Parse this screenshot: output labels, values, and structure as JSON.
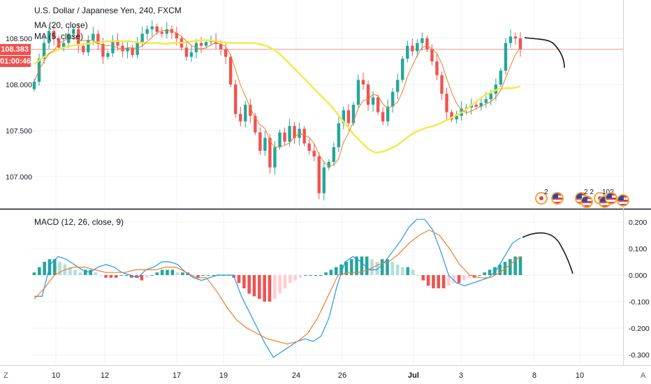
{
  "header": {
    "symbol_title": "U.S. Dollar / Japanese Yen, 240, FXCM",
    "ma20_label": "MA (20, close)",
    "ma5_label": "MA (5, close)",
    "macd_label": "MACD (12, 26, close, 9)"
  },
  "price_tags": {
    "last_price": "108.383",
    "countdown": "01:00:46"
  },
  "price_axis": [
    "108.500",
    "108.000",
    "107.500",
    "107.000"
  ],
  "macd_axis": [
    "0.200",
    "0.100",
    "0.000",
    "-0.100",
    "-0.200",
    "-0.300"
  ],
  "time_axis": [
    "10",
    "12",
    "17",
    "19",
    "24",
    "26",
    "Jul",
    "3",
    "8",
    "10"
  ],
  "events": [
    {
      "count": "2"
    },
    {
      "count": "2 2"
    },
    {
      "count": "10?"
    }
  ],
  "bottom": {
    "zoom_glyph": "Z",
    "scroll_glyph": "A"
  },
  "colors": {
    "up": "#26a69a",
    "down": "#ef5350",
    "ma20": "#f5e84b",
    "ma5": "#f07c2a",
    "macd": "#2196f3",
    "signal": "#f07c2a",
    "price_line": "#f19999",
    "hist_up_strong": "#26a69a",
    "hist_up_weak": "#b2dfdb",
    "hist_down_strong": "#ef5350",
    "hist_down_weak": "#ffcdd2"
  },
  "chart_data": {
    "type": "candlestick",
    "instrument": "U.S. Dollar / Japanese Yen",
    "timeframe": "240",
    "source": "FXCM",
    "price_ylim": [
      106.8,
      108.75
    ],
    "macd_ylim": [
      -0.33,
      0.23
    ],
    "close": [
      108.03,
      108.28,
      108.45,
      108.58,
      108.5,
      108.4,
      108.45,
      108.55,
      108.6,
      108.42,
      108.35,
      108.48,
      108.55,
      108.44,
      108.3,
      108.34,
      108.48,
      108.42,
      108.36,
      108.4,
      108.32,
      108.46,
      108.55,
      108.6,
      108.63,
      108.57,
      108.55,
      108.6,
      108.56,
      108.5,
      108.4,
      108.3,
      108.35,
      108.45,
      108.42,
      108.46,
      108.48,
      108.44,
      108.38,
      108.3,
      108.0,
      107.68,
      107.6,
      107.78,
      107.66,
      107.48,
      107.28,
      107.42,
      107.1,
      107.32,
      107.48,
      107.38,
      107.55,
      107.42,
      107.52,
      107.36,
      107.28,
      107.22,
      106.82,
      107.1,
      107.16,
      107.32,
      107.58,
      107.72,
      107.58,
      107.78,
      108.05,
      108.0,
      107.78,
      107.86,
      107.7,
      107.6,
      107.76,
      107.92,
      108.05,
      108.28,
      108.42,
      108.36,
      108.45,
      108.5,
      108.38,
      108.25,
      108.1,
      107.9,
      107.7,
      107.62,
      107.66,
      107.74,
      107.75,
      107.78,
      107.76,
      107.8,
      107.84,
      107.9,
      108.0,
      108.15,
      108.45,
      108.52,
      108.5,
      108.38
    ],
    "ma20": [
      108.22,
      108.28,
      108.33,
      108.37,
      108.4,
      108.42,
      108.43,
      108.44,
      108.45,
      108.46,
      108.47,
      108.47,
      108.47,
      108.47,
      108.46,
      108.45,
      108.45,
      108.45,
      108.44,
      108.45,
      108.45,
      108.46,
      108.47,
      108.48,
      108.48,
      108.47,
      108.46,
      108.45,
      108.45,
      108.45,
      108.45,
      108.44,
      108.42,
      108.38,
      108.32,
      108.24,
      108.16,
      108.08,
      108.0,
      107.92,
      107.84,
      107.76,
      107.66,
      107.56,
      107.46,
      107.38,
      107.3,
      107.26,
      107.27,
      107.3,
      107.34,
      107.4,
      107.46,
      107.5,
      107.53,
      107.55,
      107.58,
      107.62,
      107.66,
      107.7,
      107.76,
      107.82,
      107.88,
      107.92,
      107.95,
      107.96,
      107.96,
      107.98
    ],
    "macd": [
      -0.08,
      -0.08,
      0.04,
      0.07,
      0.06,
      0.04,
      0.02,
      0.01,
      0.03,
      0.04,
      0.03,
      0.01,
      0.0,
      -0.01,
      0.02,
      0.03,
      0.05,
      0.05,
      0.04,
      0.01,
      -0.01,
      -0.02,
      -0.01,
      0.0,
      0.0,
      0.0,
      -0.08,
      -0.14,
      -0.2,
      -0.26,
      -0.31,
      -0.29,
      -0.27,
      -0.25,
      -0.24,
      -0.25,
      -0.23,
      -0.16,
      -0.04,
      0.05,
      0.07,
      0.05,
      0.02,
      0.02,
      0.05,
      0.09,
      0.13,
      0.18,
      0.21,
      0.21,
      0.17,
      0.09,
      0.0,
      -0.03,
      -0.04,
      -0.03,
      -0.02,
      -0.01,
      0.02,
      0.07,
      0.12,
      0.14
    ],
    "signal": [
      -0.09,
      -0.05,
      0.0,
      0.02,
      0.03,
      0.03,
      0.02,
      0.01,
      0.01,
      0.01,
      0.02,
      0.02,
      0.02,
      0.03,
      0.03,
      0.01,
      -0.01,
      -0.01,
      -0.06,
      -0.12,
      -0.17,
      -0.2,
      -0.22,
      -0.24,
      -0.25,
      -0.26,
      -0.25,
      -0.22,
      -0.16,
      -0.08,
      0.0,
      0.01,
      0.01,
      0.02,
      0.04,
      0.05,
      0.08,
      0.12,
      0.15,
      0.17,
      0.15,
      0.1,
      0.04,
      0.0,
      -0.01,
      -0.01,
      0.01,
      0.04,
      0.07
    ],
    "histogram": [
      0.01,
      0.03,
      0.05,
      0.06,
      0.06,
      0.05,
      0.04,
      0.03,
      0.02,
      0.01,
      0.02,
      0.02,
      0.01,
      0.0,
      -0.01,
      -0.01,
      -0.01,
      0.0,
      0.0,
      -0.01,
      -0.01,
      -0.02,
      -0.01,
      0.0,
      0.01,
      0.02,
      0.02,
      0.02,
      0.01,
      0.01,
      0.01,
      0.0,
      -0.01,
      0.0,
      0.0,
      0.0,
      0.0,
      0.0,
      0.0,
      -0.01,
      -0.03,
      -0.05,
      -0.07,
      -0.08,
      -0.09,
      -0.1,
      -0.1,
      -0.09,
      -0.07,
      -0.05,
      -0.03,
      -0.02,
      -0.01,
      0.0,
      0.0,
      0.0,
      0.0,
      0.01,
      0.02,
      0.03,
      0.04,
      0.05,
      0.06,
      0.07,
      0.07,
      0.07,
      0.06,
      0.05,
      0.06,
      0.06,
      0.05,
      0.04,
      0.03,
      0.03,
      0.02,
      0.0,
      -0.02,
      -0.04,
      -0.05,
      -0.05,
      -0.05,
      -0.04,
      -0.03,
      -0.03,
      -0.02,
      -0.01,
      -0.01,
      0.0,
      0.01,
      0.02,
      0.03,
      0.04,
      0.05,
      0.06,
      0.07,
      0.07
    ]
  }
}
